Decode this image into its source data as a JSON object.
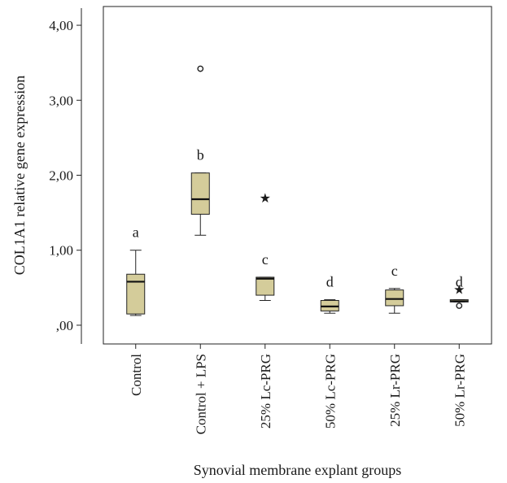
{
  "chart_data": {
    "type": "boxplot",
    "xlabel": "Synovial membrane explant groups",
    "ylabel": "COL1A1 relative gene expression",
    "ylim": [
      -0.25,
      4.25
    ],
    "yticks": [
      {
        "value": 0,
        "label": ",00"
      },
      {
        "value": 1,
        "label": "1,00"
      },
      {
        "value": 2,
        "label": "2,00"
      },
      {
        "value": 3,
        "label": "3,00"
      },
      {
        "value": 4,
        "label": "4,00"
      }
    ],
    "box_color": "#d4cc9a",
    "categories": [
      "Control",
      "Control + LPS",
      "25% Lc-PRG",
      "50% Lc-PRG",
      "25% Lr-PRG",
      "50% Lr-PRG"
    ],
    "boxes": [
      {
        "category": "Control",
        "letter": "a",
        "whisker_low": 0.13,
        "q1": 0.15,
        "median": 0.58,
        "q3": 0.68,
        "whisker_high": 1.0,
        "outliers": []
      },
      {
        "category": "Control + LPS",
        "letter": "b",
        "whisker_low": 1.2,
        "q1": 1.48,
        "median": 1.68,
        "q3": 2.03,
        "whisker_high": 2.03,
        "outliers": [
          {
            "value": 3.42,
            "marker": "circle"
          }
        ]
      },
      {
        "category": "25% Lc-PRG",
        "letter": "c",
        "whisker_low": 0.33,
        "q1": 0.4,
        "median": 0.62,
        "q3": 0.64,
        "whisker_high": 0.64,
        "outliers": [
          {
            "value": 1.7,
            "marker": "star"
          }
        ]
      },
      {
        "category": "50% Lc-PRG",
        "letter": "d",
        "whisker_low": 0.16,
        "q1": 0.19,
        "median": 0.25,
        "q3": 0.33,
        "whisker_high": 0.34,
        "outliers": []
      },
      {
        "category": "25% Lr-PRG",
        "letter": "c",
        "whisker_low": 0.16,
        "q1": 0.26,
        "median": 0.35,
        "q3": 0.47,
        "whisker_high": 0.49,
        "outliers": []
      },
      {
        "category": "50% Lr-PRG",
        "letter": "d",
        "whisker_low": 0.31,
        "q1": 0.31,
        "median": 0.32,
        "q3": 0.34,
        "whisker_high": 0.34,
        "outliers": [
          {
            "value": 0.26,
            "marker": "circle"
          },
          {
            "value": 0.48,
            "marker": "star"
          }
        ]
      }
    ]
  }
}
